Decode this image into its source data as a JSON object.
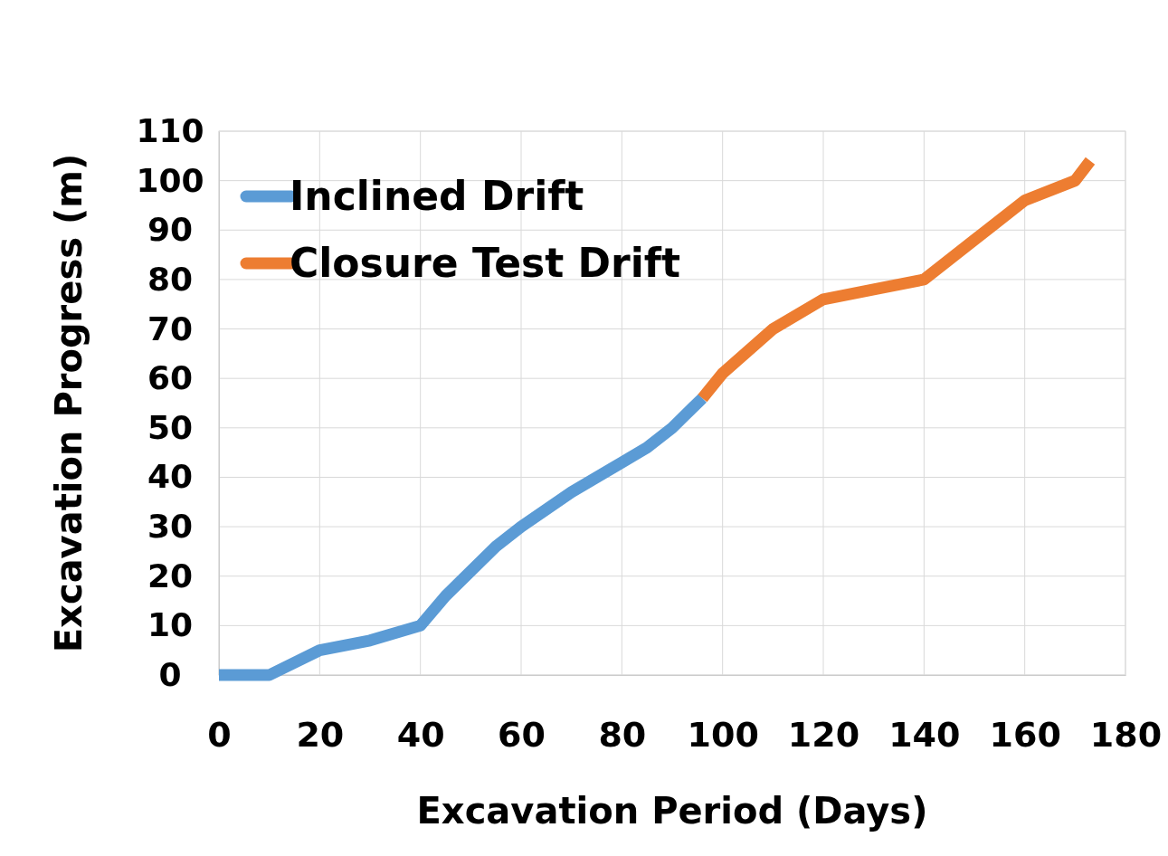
{
  "chart_data": {
    "type": "line",
    "xlabel": "Excavation Period (Days)",
    "ylabel": "Excavation Progress (m)",
    "xlim": [
      0,
      180
    ],
    "xticks": [
      0,
      20,
      40,
      60,
      80,
      100,
      120,
      140,
      160,
      180
    ],
    "ylim": [
      0,
      110
    ],
    "yticks": [
      0,
      10,
      20,
      30,
      40,
      50,
      60,
      70,
      80,
      90,
      100,
      110
    ],
    "grid": true,
    "legend": "top left",
    "line_style": "solid",
    "marker": "none",
    "series": [
      {
        "name": "Inclined Drift",
        "color": "#5b9bd5",
        "x": [
          0,
          10,
          20,
          30,
          40,
          45,
          55,
          60,
          70,
          80,
          85,
          90,
          96
        ],
        "values": [
          0,
          0,
          5,
          7,
          10,
          16,
          26,
          30,
          37,
          43,
          46,
          50,
          56
        ]
      },
      {
        "name": "Closure Test Drift",
        "color": "#ed7d31",
        "x": [
          96,
          100,
          110,
          120,
          130,
          140,
          150,
          160,
          170,
          173
        ],
        "values": [
          56,
          61,
          70,
          76,
          78,
          80,
          88,
          96,
          100,
          104
        ]
      }
    ]
  }
}
